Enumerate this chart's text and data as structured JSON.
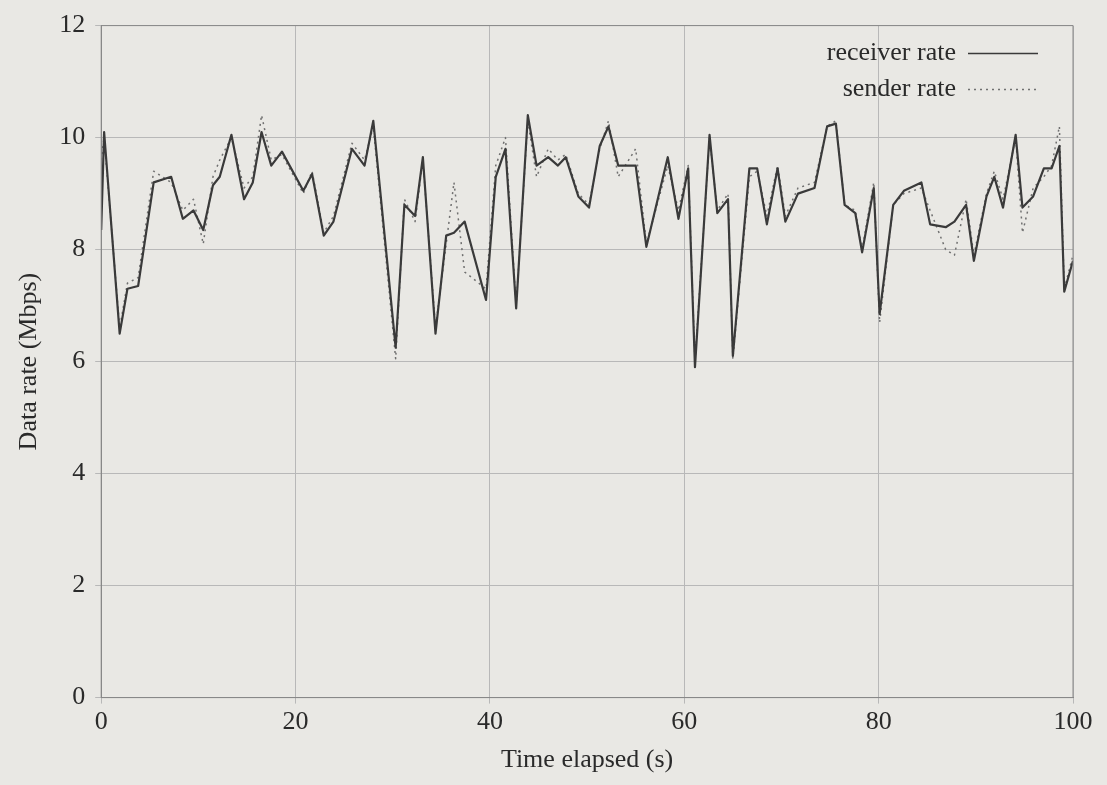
{
  "chart_data": {
    "type": "line",
    "xlabel": "Time elapsed (s)",
    "ylabel": "Data rate (Mbps)",
    "x": [
      0,
      0.3,
      1.9,
      2.7,
      3.8,
      5.4,
      7.2,
      8.4,
      9.5,
      10.5,
      11.5,
      12.2,
      13.4,
      14.7,
      15.6,
      16.5,
      17.5,
      18.6,
      20.8,
      21.7,
      22.9,
      23.9,
      25.8,
      27.1,
      28,
      30.3,
      31.2,
      32.3,
      33.1,
      34.4,
      35.5,
      36.3,
      37.4,
      39.6,
      40.6,
      41.6,
      42.7,
      43.9,
      44.8,
      46,
      47,
      47.8,
      49.1,
      50.2,
      51.3,
      52.2,
      53.2,
      55,
      56.1,
      58.3,
      59.4,
      60.4,
      61.1,
      62.6,
      63.4,
      64.5,
      65,
      66.7,
      67.5,
      68.5,
      69.6,
      70.4,
      71.7,
      73.4,
      74.7,
      75.6,
      76.5,
      77.6,
      78.3,
      79.5,
      80.1,
      81.5,
      82.6,
      84.4,
      85.3,
      86.9,
      87.8,
      89,
      89.8,
      91.1,
      91.9,
      92.8,
      94.1,
      94.8,
      95.9,
      97,
      97.8,
      98.6,
      99.1,
      100
    ],
    "series": [
      {
        "name": "receiver rate",
        "color": "#3a3a3a",
        "line_style": "solid",
        "values": [
          8.35,
          10.1,
          6.5,
          7.3,
          7.35,
          9.2,
          9.3,
          8.55,
          8.7,
          8.35,
          9.15,
          9.3,
          10.05,
          8.9,
          9.2,
          10.1,
          9.5,
          9.75,
          9.05,
          9.35,
          8.25,
          8.5,
          9.8,
          9.5,
          10.3,
          6.25,
          8.8,
          8.6,
          9.65,
          6.5,
          8.25,
          8.3,
          8.5,
          7.1,
          9.3,
          9.8,
          6.95,
          10.4,
          9.5,
          9.65,
          9.5,
          9.65,
          8.95,
          8.75,
          9.85,
          10.2,
          9.5,
          9.5,
          8.05,
          9.65,
          8.55,
          9.45,
          5.9,
          10.05,
          8.65,
          8.9,
          6.1,
          9.45,
          9.45,
          8.45,
          9.45,
          8.5,
          9,
          9.1,
          10.2,
          10.25,
          8.8,
          8.65,
          7.95,
          9.1,
          6.85,
          8.8,
          9.05,
          9.2,
          8.45,
          8.4,
          8.5,
          8.8,
          7.8,
          8.95,
          9.3,
          8.75,
          10.05,
          8.75,
          8.95,
          9.45,
          9.45,
          9.85,
          7.25,
          7.8
        ]
      },
      {
        "name": "sender rate",
        "color": "#707070",
        "line_style": "dotted",
        "values": [
          9.6,
          10,
          6.6,
          7.4,
          7.5,
          9.4,
          9.2,
          8.7,
          8.9,
          8.1,
          9.3,
          9.6,
          10,
          9.1,
          9.3,
          10.4,
          9.6,
          9.7,
          9,
          9.4,
          8.3,
          8.6,
          9.9,
          9.6,
          10.2,
          6.05,
          8.9,
          8.5,
          9.6,
          6.6,
          8.1,
          9.2,
          7.6,
          7.3,
          9.5,
          10,
          7,
          10.3,
          9.3,
          9.8,
          9.6,
          9.7,
          9,
          8.8,
          9.8,
          10.3,
          9.3,
          9.8,
          8.1,
          9.5,
          8.7,
          9.5,
          6,
          10,
          8.7,
          9,
          6.05,
          9.3,
          9.4,
          8.6,
          9.5,
          8.6,
          9.1,
          9.2,
          10.2,
          10.3,
          8.8,
          8.7,
          8,
          9.2,
          6.7,
          8.8,
          9,
          9.1,
          8.7,
          8,
          7.9,
          8.9,
          7.9,
          9,
          9.4,
          8.9,
          10,
          8.3,
          9.1,
          9.3,
          9.5,
          10.2,
          7.3,
          7.9
        ]
      }
    ],
    "xlim": [
      0,
      100
    ],
    "xticks": [
      0,
      20,
      40,
      60,
      80,
      100
    ],
    "ylim": [
      0,
      12
    ],
    "yticks": [
      0,
      2,
      4,
      6,
      8,
      10,
      12
    ],
    "grid": true,
    "legend": "top right",
    "marker": "none"
  }
}
